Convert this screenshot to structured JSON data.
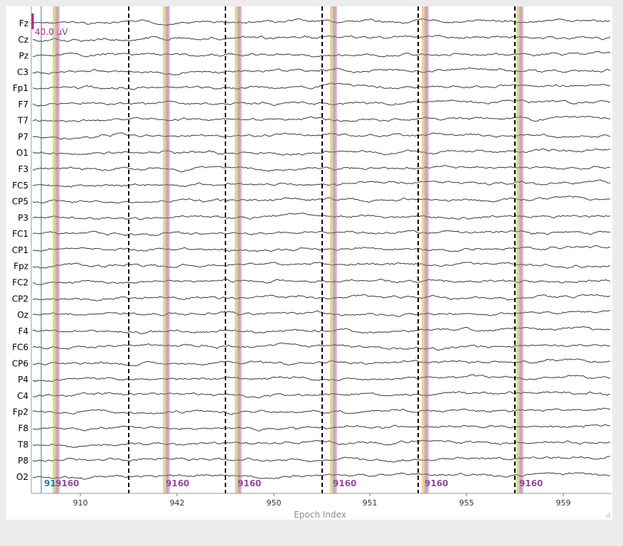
{
  "plot": {
    "xlabel": "Epoch Index",
    "scale_label": "40.0 µV",
    "first_event_label": "91",
    "event_id_label": "9160"
  },
  "colors": {
    "background": "#ffffff",
    "trace": "#3a3a3a",
    "boundary": "#000000",
    "scale_bar": "#aa2a8a",
    "event_line_teal": "#1f77b4",
    "event_line_orange": "#e8a33a",
    "event_line_green": "#8bbf4a",
    "event_line_red": "#c44e52",
    "event_line_purple": "#8e4a9e",
    "event_line_pink": "#c779a8"
  },
  "chart_data": {
    "type": "line",
    "title": "",
    "xlabel": "Epoch Index",
    "ylabel": "",
    "channels": [
      "Fz",
      "Cz",
      "Pz",
      "C3",
      "Fp1",
      "F7",
      "T7",
      "P7",
      "O1",
      "F3",
      "FC5",
      "CP5",
      "P3",
      "FC1",
      "CP1",
      "Fpz",
      "FC2",
      "CP2",
      "Oz",
      "F4",
      "FC6",
      "CP6",
      "P4",
      "C4",
      "Fp2",
      "F8",
      "T8",
      "P8",
      "O2"
    ],
    "epoch_ticks": [
      "910",
      "942",
      "950",
      "951",
      "955",
      "959"
    ],
    "epoch_count": 6,
    "scale_microvolts": 40.0,
    "grid": false
  }
}
